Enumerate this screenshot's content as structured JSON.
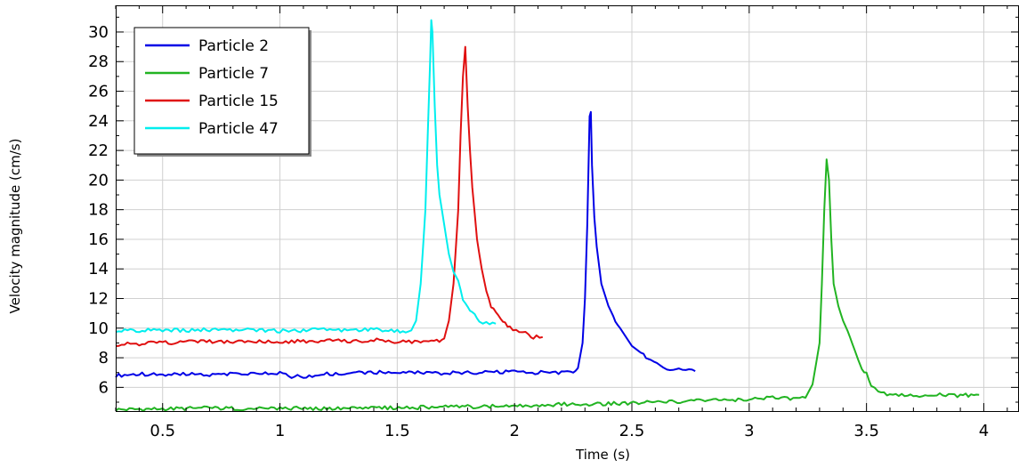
{
  "chart_data": {
    "type": "line",
    "title": "",
    "xlabel": "Time (s)",
    "ylabel": "Velocity magnitude (cm/s)",
    "xlim": [
      0.3,
      4.15
    ],
    "ylim": [
      4.4,
      31.8
    ],
    "xticks": [
      0.5,
      1,
      1.5,
      2,
      2.5,
      3,
      3.5,
      4
    ],
    "xtick_labels": [
      "0.5",
      "1",
      "1.5",
      "2",
      "2.5",
      "3",
      "3.5",
      "4"
    ],
    "yticks": [
      6,
      8,
      10,
      12,
      14,
      16,
      18,
      20,
      22,
      24,
      26,
      28,
      30
    ],
    "ytick_labels": [
      "6",
      "8",
      "10",
      "12",
      "14",
      "16",
      "18",
      "20",
      "22",
      "24",
      "26",
      "28",
      "30"
    ],
    "grid": true,
    "legend_position": "top-left",
    "series": [
      {
        "name": "Particle 2",
        "color": "#0000e6",
        "points": [
          [
            0.3,
            6.8
          ],
          [
            0.4,
            6.9
          ],
          [
            0.5,
            6.85
          ],
          [
            0.6,
            6.9
          ],
          [
            0.7,
            6.85
          ],
          [
            0.8,
            6.95
          ],
          [
            0.9,
            6.9
          ],
          [
            1.0,
            6.95
          ],
          [
            1.05,
            6.75
          ],
          [
            1.1,
            6.7
          ],
          [
            1.2,
            6.9
          ],
          [
            1.3,
            6.95
          ],
          [
            1.4,
            7.0
          ],
          [
            1.5,
            7.0
          ],
          [
            1.6,
            7.0
          ],
          [
            1.7,
            6.95
          ],
          [
            1.8,
            7.0
          ],
          [
            1.9,
            7.0
          ],
          [
            2.0,
            7.05
          ],
          [
            2.1,
            7.0
          ],
          [
            2.2,
            7.0
          ],
          [
            2.25,
            7.0
          ],
          [
            2.27,
            7.3
          ],
          [
            2.29,
            9.0
          ],
          [
            2.3,
            12.0
          ],
          [
            2.31,
            17.0
          ],
          [
            2.32,
            24.3
          ],
          [
            2.325,
            24.6
          ],
          [
            2.33,
            21.0
          ],
          [
            2.34,
            17.5
          ],
          [
            2.35,
            15.5
          ],
          [
            2.37,
            13.0
          ],
          [
            2.4,
            11.5
          ],
          [
            2.43,
            10.5
          ],
          [
            2.45,
            10.0
          ],
          [
            2.5,
            8.8
          ],
          [
            2.55,
            8.2
          ],
          [
            2.58,
            7.8
          ],
          [
            2.62,
            7.6
          ],
          [
            2.65,
            7.3
          ],
          [
            2.7,
            7.2
          ],
          [
            2.73,
            7.1
          ],
          [
            2.77,
            7.1
          ]
        ]
      },
      {
        "name": "Particle 7",
        "color": "#22b422",
        "points": [
          [
            0.3,
            4.5
          ],
          [
            0.5,
            4.55
          ],
          [
            0.7,
            4.6
          ],
          [
            0.9,
            4.55
          ],
          [
            1.0,
            4.6
          ],
          [
            1.2,
            4.55
          ],
          [
            1.4,
            4.6
          ],
          [
            1.6,
            4.65
          ],
          [
            1.8,
            4.7
          ],
          [
            2.0,
            4.75
          ],
          [
            2.2,
            4.85
          ],
          [
            2.4,
            4.9
          ],
          [
            2.6,
            5.0
          ],
          [
            2.8,
            5.1
          ],
          [
            3.0,
            5.2
          ],
          [
            3.1,
            5.3
          ],
          [
            3.2,
            5.2
          ],
          [
            3.24,
            5.3
          ],
          [
            3.27,
            6.2
          ],
          [
            3.3,
            9.0
          ],
          [
            3.31,
            13.0
          ],
          [
            3.32,
            18.0
          ],
          [
            3.33,
            21.4
          ],
          [
            3.34,
            20.0
          ],
          [
            3.35,
            16.0
          ],
          [
            3.36,
            13.0
          ],
          [
            3.38,
            11.5
          ],
          [
            3.4,
            10.5
          ],
          [
            3.42,
            9.8
          ],
          [
            3.45,
            8.5
          ],
          [
            3.48,
            7.2
          ],
          [
            3.5,
            7.0
          ],
          [
            3.52,
            6.0
          ],
          [
            3.55,
            5.8
          ],
          [
            3.6,
            5.5
          ],
          [
            3.7,
            5.4
          ],
          [
            3.8,
            5.5
          ],
          [
            3.9,
            5.45
          ],
          [
            3.98,
            5.5
          ]
        ]
      },
      {
        "name": "Particle 15",
        "color": "#e01010",
        "points": [
          [
            0.3,
            8.9
          ],
          [
            0.4,
            8.95
          ],
          [
            0.5,
            9.0
          ],
          [
            0.6,
            9.05
          ],
          [
            0.7,
            9.1
          ],
          [
            0.8,
            9.05
          ],
          [
            0.9,
            9.1
          ],
          [
            1.0,
            9.1
          ],
          [
            1.1,
            9.1
          ],
          [
            1.2,
            9.15
          ],
          [
            1.3,
            9.1
          ],
          [
            1.4,
            9.2
          ],
          [
            1.5,
            9.1
          ],
          [
            1.6,
            9.05
          ],
          [
            1.68,
            9.1
          ],
          [
            1.7,
            9.3
          ],
          [
            1.72,
            10.5
          ],
          [
            1.74,
            13.0
          ],
          [
            1.76,
            18.0
          ],
          [
            1.77,
            23.0
          ],
          [
            1.78,
            27.0
          ],
          [
            1.79,
            29.0
          ],
          [
            1.8,
            25.0
          ],
          [
            1.81,
            22.0
          ],
          [
            1.82,
            19.5
          ],
          [
            1.84,
            16.0
          ],
          [
            1.86,
            14.0
          ],
          [
            1.88,
            12.5
          ],
          [
            1.9,
            11.5
          ],
          [
            1.92,
            11.0
          ],
          [
            1.95,
            10.5
          ],
          [
            1.98,
            10.0
          ],
          [
            2.02,
            9.8
          ],
          [
            2.06,
            9.6
          ],
          [
            2.08,
            9.4
          ],
          [
            2.12,
            9.4
          ]
        ]
      },
      {
        "name": "Particle 47",
        "color": "#00eeee",
        "points": [
          [
            0.3,
            9.8
          ],
          [
            0.4,
            9.85
          ],
          [
            0.5,
            9.9
          ],
          [
            0.6,
            9.85
          ],
          [
            0.7,
            9.9
          ],
          [
            0.8,
            9.85
          ],
          [
            0.9,
            9.9
          ],
          [
            1.0,
            9.8
          ],
          [
            1.1,
            9.85
          ],
          [
            1.2,
            9.9
          ],
          [
            1.3,
            9.85
          ],
          [
            1.4,
            9.9
          ],
          [
            1.5,
            9.8
          ],
          [
            1.56,
            9.85
          ],
          [
            1.58,
            10.5
          ],
          [
            1.6,
            13.0
          ],
          [
            1.62,
            18.0
          ],
          [
            1.63,
            23.0
          ],
          [
            1.64,
            28.0
          ],
          [
            1.645,
            30.8
          ],
          [
            1.65,
            30.0
          ],
          [
            1.66,
            25.0
          ],
          [
            1.67,
            21.0
          ],
          [
            1.68,
            19.0
          ],
          [
            1.7,
            17.0
          ],
          [
            1.72,
            15.0
          ],
          [
            1.74,
            13.8
          ],
          [
            1.76,
            13.2
          ],
          [
            1.78,
            12.0
          ],
          [
            1.8,
            11.5
          ],
          [
            1.82,
            11.0
          ],
          [
            1.85,
            10.5
          ],
          [
            1.88,
            10.3
          ],
          [
            1.92,
            10.3
          ]
        ]
      }
    ]
  }
}
